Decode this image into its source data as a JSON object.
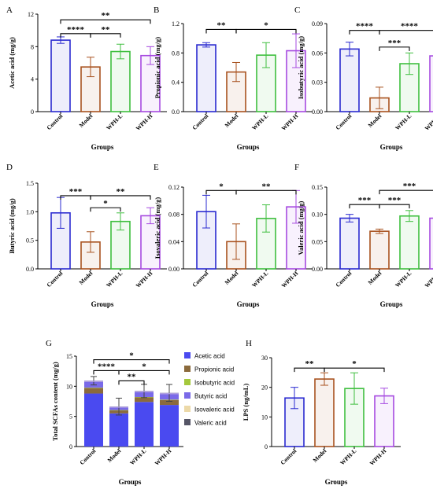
{
  "colors": {
    "Control": "#2a2ad0",
    "Model": "#a8521f",
    "WPH-L": "#3fbf3f",
    "WPH-H": "#a64ae0",
    "Acetic acid": "#4a4af0",
    "Propionic acid": "#8b6a3c",
    "Isobutyric acid": "#a4c83c",
    "Butyric acid": "#7a6ae8",
    "Isovaleric acid": "#ecd9a8",
    "Valeric acid": "#555566"
  },
  "chart_data": [
    {
      "id": "A",
      "type": "bar",
      "categories": [
        "Control",
        "Model",
        "WPH-L",
        "WPH-H"
      ],
      "values": [
        8.8,
        5.5,
        7.4,
        6.9
      ],
      "errors": [
        0.4,
        1.2,
        0.9,
        1.1
      ],
      "ylabel": "Acetic acid (mg/g)",
      "xlabel": "Groups",
      "ylim": [
        0,
        12
      ],
      "yticks": [
        0,
        4,
        8,
        12
      ],
      "ytick_labels": [
        "0",
        "4",
        "8",
        "12"
      ],
      "significance": [
        {
          "from": 0,
          "to": 3,
          "label": "**",
          "level": 11.3
        },
        {
          "from": 0,
          "to": 1,
          "label": "****",
          "level": 9.6
        },
        {
          "from": 1,
          "to": 2,
          "label": "**",
          "level": 9.6
        }
      ]
    },
    {
      "id": "B",
      "type": "bar",
      "categories": [
        "Control",
        "Model",
        "WPH-L",
        "WPH-H"
      ],
      "values": [
        0.91,
        0.54,
        0.77,
        0.83
      ],
      "errors": [
        0.03,
        0.13,
        0.17,
        0.23
      ],
      "ylabel": "Propionic acid (mg/g)",
      "xlabel": "Groups",
      "ylim": [
        0,
        1.2
      ],
      "yticks": [
        0,
        0.4,
        0.8,
        1.2
      ],
      "ytick_labels": [
        "0.0",
        "0.4",
        "0.8",
        "1.2"
      ],
      "significance": [
        {
          "from": 0,
          "to": 1,
          "label": "**",
          "level": 1.12
        },
        {
          "from": 1,
          "to": 3,
          "label": "*",
          "level": 1.12
        }
      ]
    },
    {
      "id": "C",
      "type": "bar",
      "categories": [
        "Control",
        "Model",
        "WPH-L",
        "WPH-H"
      ],
      "values": [
        0.064,
        0.014,
        0.049,
        0.057
      ],
      "errors": [
        0.007,
        0.011,
        0.011,
        0.016
      ],
      "ylabel": "Isobutyric acid (mg/g)",
      "xlabel": "Groups",
      "ylim": [
        0,
        0.09
      ],
      "yticks": [
        0,
        0.03,
        0.06,
        0.09
      ],
      "ytick_labels": [
        "0.00",
        "0.03",
        "0.06",
        "0.09"
      ],
      "significance": [
        {
          "from": 0,
          "to": 1,
          "label": "****",
          "level": 0.083
        },
        {
          "from": 1,
          "to": 3,
          "label": "****",
          "level": 0.083
        },
        {
          "from": 1,
          "to": 2,
          "label": "***",
          "level": 0.066
        }
      ]
    },
    {
      "id": "D",
      "type": "bar",
      "categories": [
        "Control",
        "Model",
        "WPH-L",
        "WPH-H"
      ],
      "values": [
        0.98,
        0.47,
        0.83,
        0.93
      ],
      "errors": [
        0.27,
        0.18,
        0.15,
        0.14
      ],
      "ylabel": "Butyric acid (mg/g)",
      "xlabel": "Groups",
      "ylim": [
        0,
        1.5
      ],
      "yticks": [
        0,
        0.5,
        1.0,
        1.5
      ],
      "ytick_labels": [
        "0.0",
        "0.5",
        "1.0",
        "1.5"
      ],
      "significance": [
        {
          "from": 0,
          "to": 1,
          "label": "***",
          "level": 1.28
        },
        {
          "from": 1,
          "to": 3,
          "label": "**",
          "level": 1.28
        },
        {
          "from": 1,
          "to": 2,
          "label": "*",
          "level": 1.07
        }
      ]
    },
    {
      "id": "E",
      "type": "bar",
      "categories": [
        "Control",
        "Model",
        "WPH-L",
        "WPH-H"
      ],
      "values": [
        0.084,
        0.04,
        0.074,
        0.091
      ],
      "errors": [
        0.024,
        0.026,
        0.02,
        0.024
      ],
      "ylabel": "Isovaleric acid (mg/g)",
      "xlabel": "Groups",
      "ylim": [
        0,
        0.12
      ],
      "yticks": [
        0,
        0.04,
        0.08,
        0.12
      ],
      "ytick_labels": [
        "0.00",
        "0.04",
        "0.08",
        "0.12"
      ],
      "significance": [
        {
          "from": 0,
          "to": 1,
          "label": "*",
          "level": 0.115
        },
        {
          "from": 1,
          "to": 3,
          "label": "**",
          "level": 0.115
        }
      ]
    },
    {
      "id": "F",
      "type": "bar",
      "categories": [
        "Control",
        "Model",
        "WPH-L",
        "WPH-H"
      ],
      "values": [
        0.093,
        0.069,
        0.097,
        0.093
      ],
      "errors": [
        0.007,
        0.004,
        0.01,
        0.009
      ],
      "ylabel": "Valeric acid (mg/g)",
      "xlabel": "Groups",
      "ylim": [
        0,
        0.15
      ],
      "yticks": [
        0,
        0.05,
        0.1,
        0.15
      ],
      "ytick_labels": [
        "0.00",
        "0.05",
        "0.10",
        "0.15"
      ],
      "significance": [
        {
          "from": 1,
          "to": 3,
          "label": "***",
          "level": 0.144
        },
        {
          "from": 0,
          "to": 1,
          "label": "***",
          "level": 0.118
        },
        {
          "from": 1,
          "to": 2,
          "label": "***",
          "level": 0.118
        }
      ]
    },
    {
      "id": "G",
      "type": "stacked_bar",
      "categories": [
        "Control",
        "Model",
        "WPH-L",
        "WPH-H"
      ],
      "series": [
        {
          "name": "Acetic acid",
          "values": [
            8.8,
            5.5,
            7.4,
            6.9
          ]
        },
        {
          "name": "Propionic acid",
          "values": [
            0.91,
            0.54,
            0.77,
            0.83
          ]
        },
        {
          "name": "Isobutyric acid",
          "values": [
            0.06,
            0.01,
            0.05,
            0.06
          ]
        },
        {
          "name": "Butyric acid",
          "values": [
            0.98,
            0.47,
            0.83,
            0.93
          ]
        },
        {
          "name": "Isovaleric acid",
          "values": [
            0.08,
            0.04,
            0.07,
            0.09
          ]
        },
        {
          "name": "Valeric acid",
          "values": [
            0.09,
            0.07,
            0.1,
            0.09
          ]
        }
      ],
      "errors": [
        0.7,
        1.4,
        1.1,
        1.4
      ],
      "ylabel": "Total SCFAs content (mg/g)",
      "xlabel": "Groups",
      "ylim": [
        0,
        15
      ],
      "yticks": [
        0,
        5,
        10,
        15
      ],
      "ytick_labels": [
        "0",
        "5",
        "10",
        "15"
      ],
      "legend_position": "right",
      "significance": [
        {
          "from": 0,
          "to": 3,
          "label": "*",
          "level": 14.4
        },
        {
          "from": 0,
          "to": 1,
          "label": "****",
          "level": 12.6
        },
        {
          "from": 1,
          "to": 3,
          "label": "*",
          "level": 12.6
        },
        {
          "from": 1,
          "to": 2,
          "label": "**",
          "level": 10.9
        }
      ]
    },
    {
      "id": "H",
      "type": "bar",
      "categories": [
        "Control",
        "Model",
        "WPH-L",
        "WPH-H"
      ],
      "values": [
        16.4,
        22.8,
        19.6,
        17.1
      ],
      "errors": [
        3.6,
        2.1,
        5.3,
        2.6
      ],
      "ylabel": "LPS (ng/mL)",
      "xlabel": "Groups",
      "ylim": [
        0,
        30
      ],
      "yticks": [
        0,
        10,
        20,
        30
      ],
      "ytick_labels": [
        "0",
        "10",
        "20",
        "30"
      ],
      "significance": [
        {
          "from": 0,
          "to": 1,
          "label": "**",
          "level": 26.5
        },
        {
          "from": 1,
          "to": 3,
          "label": "*",
          "level": 26.5
        }
      ]
    }
  ]
}
